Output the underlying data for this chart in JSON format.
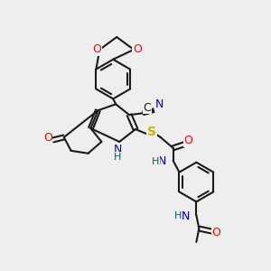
{
  "background_color": "#eeeeee",
  "bond_color": "#1a1a1a",
  "atom_colors": {
    "O": "#ff0000",
    "N": "#0000cc",
    "S": "#b8b800",
    "C": "#1a1a1a",
    "H": "#006060"
  },
  "figsize": [
    3.0,
    3.0
  ],
  "dpi": 100
}
